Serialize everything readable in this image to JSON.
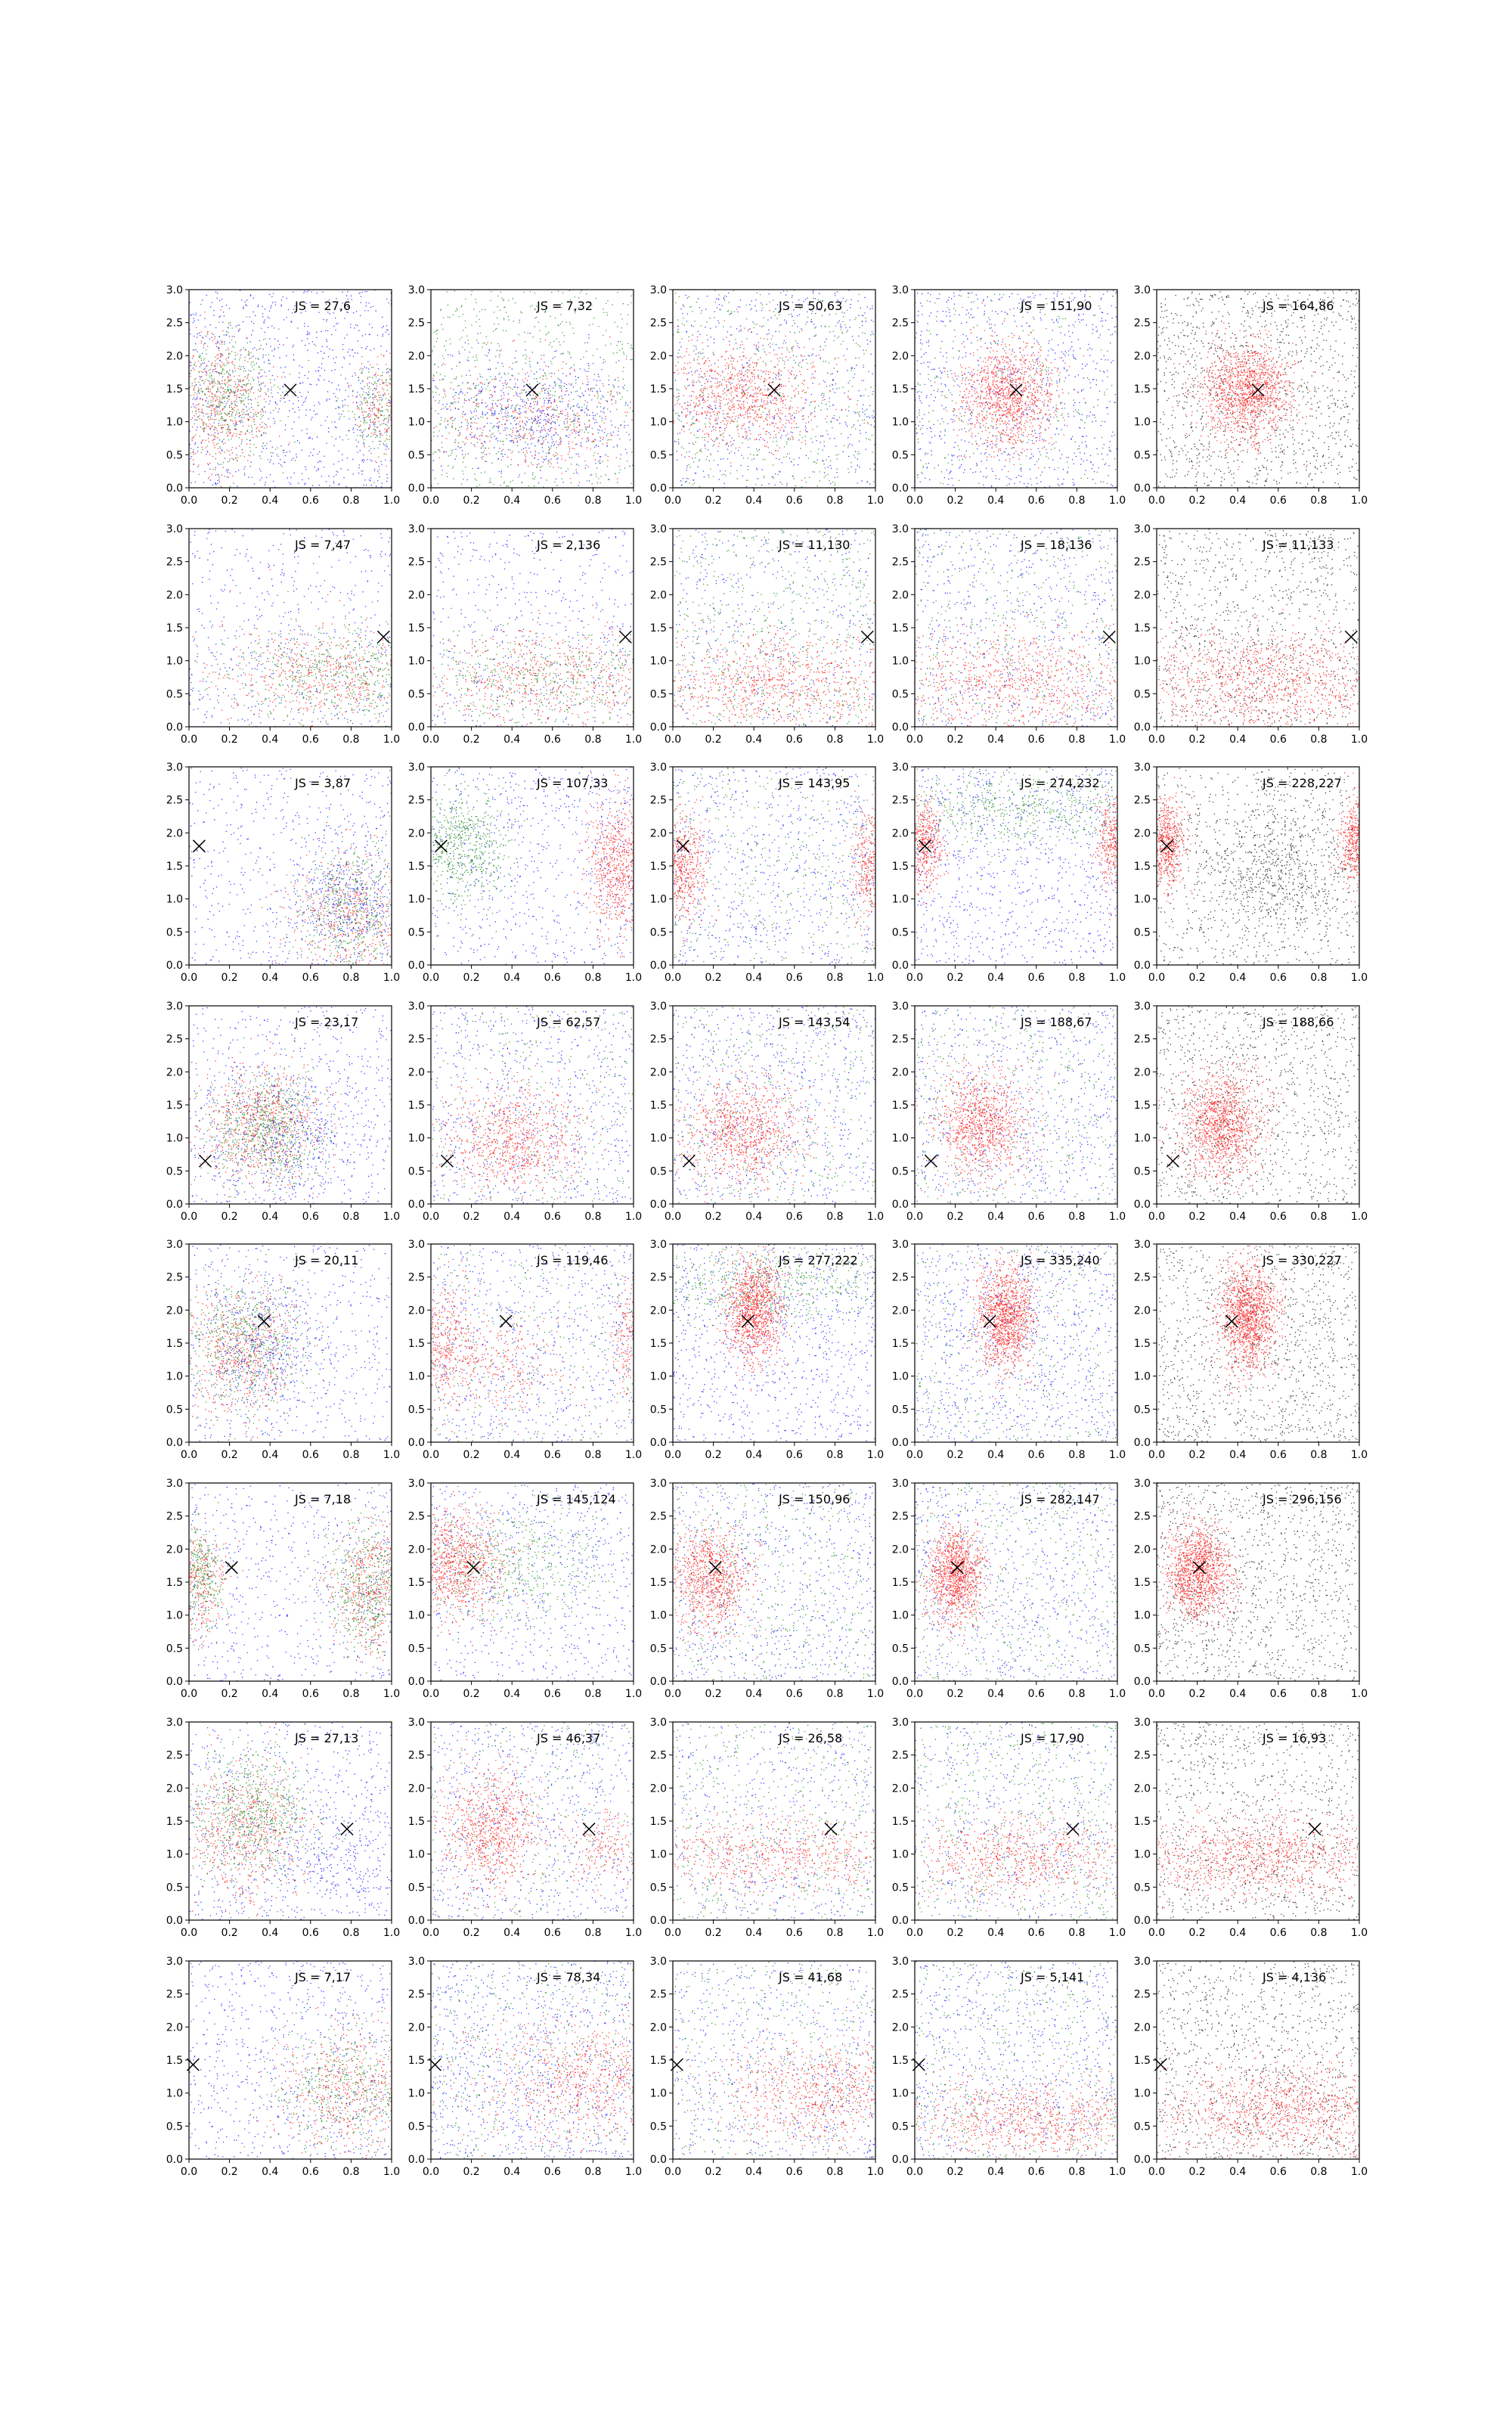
{
  "colors": {
    "red": "#ff0000",
    "green": "#008000",
    "blue": "#0000ff",
    "black": "#000000"
  },
  "axes": {
    "xlim": [
      0,
      1
    ],
    "ylim": [
      0,
      3
    ],
    "xticks": [
      "0.0",
      "0.2",
      "0.4",
      "0.6",
      "0.8",
      "1.0"
    ],
    "yticks": [
      "0.0",
      "0.5",
      "1.0",
      "1.5",
      "2.0",
      "2.5",
      "3.0"
    ],
    "grid": false
  },
  "chart_data": {
    "type": "scatter",
    "layout": "grid of 8 rows x 5 columns of small-multiple scatter plots",
    "marker": "x",
    "rows": [
      {
        "marker_point": {
          "x": 0.5,
          "y": 1.48
        },
        "panels": [
          {
            "annotation": "JS = 27,6",
            "points": "mixed"
          },
          {
            "annotation": "JS = 7,32",
            "points": "mixed"
          },
          {
            "annotation": "JS = 50,63",
            "points": "mixed"
          },
          {
            "annotation": "JS = 151,90",
            "points": "mixed"
          },
          {
            "annotation": "JS = 164,86",
            "points": "red and black"
          }
        ]
      },
      {
        "marker_point": {
          "x": 0.96,
          "y": 1.36
        },
        "panels": [
          {
            "annotation": "JS = 7,47",
            "points": "mixed"
          },
          {
            "annotation": "JS = 2,136",
            "points": "mixed"
          },
          {
            "annotation": "JS = 11,130",
            "points": "mixed"
          },
          {
            "annotation": "JS = 18,136",
            "points": "mixed"
          },
          {
            "annotation": "JS = 11,133",
            "points": "red and black"
          }
        ]
      },
      {
        "marker_point": {
          "x": 0.05,
          "y": 1.8
        },
        "panels": [
          {
            "annotation": "JS = 3,87",
            "points": "mixed"
          },
          {
            "annotation": "JS = 107,33",
            "points": "mixed"
          },
          {
            "annotation": "JS = 143,95",
            "points": "mixed"
          },
          {
            "annotation": "JS = 274,232",
            "points": "mixed"
          },
          {
            "annotation": "JS = 228,227",
            "points": "red and black"
          }
        ]
      },
      {
        "marker_point": {
          "x": 0.08,
          "y": 0.65
        },
        "panels": [
          {
            "annotation": "JS = 23,17",
            "points": "mixed"
          },
          {
            "annotation": "JS = 62,57",
            "points": "mixed"
          },
          {
            "annotation": "JS = 143,54",
            "points": "mixed"
          },
          {
            "annotation": "JS = 188,67",
            "points": "mixed"
          },
          {
            "annotation": "JS = 188,66",
            "points": "red and black"
          }
        ]
      },
      {
        "marker_point": {
          "x": 0.37,
          "y": 1.83
        },
        "panels": [
          {
            "annotation": "JS = 20,11",
            "points": "mixed"
          },
          {
            "annotation": "JS = 119,46",
            "points": "mixed"
          },
          {
            "annotation": "JS = 277,222",
            "points": "mixed"
          },
          {
            "annotation": "JS = 335,240",
            "points": "mixed"
          },
          {
            "annotation": "JS = 330,227",
            "points": "red and black"
          }
        ]
      },
      {
        "marker_point": {
          "x": 0.21,
          "y": 1.72
        },
        "panels": [
          {
            "annotation": "JS = 7,18",
            "points": "mixed"
          },
          {
            "annotation": "JS = 145,124",
            "points": "mixed"
          },
          {
            "annotation": "JS = 150,96",
            "points": "mixed"
          },
          {
            "annotation": "JS = 282,147",
            "points": "mixed"
          },
          {
            "annotation": "JS = 296,156",
            "points": "red and black"
          }
        ]
      },
      {
        "marker_point": {
          "x": 0.78,
          "y": 1.38
        },
        "panels": [
          {
            "annotation": "JS = 27,13",
            "points": "mixed"
          },
          {
            "annotation": "JS = 46,37",
            "points": "mixed"
          },
          {
            "annotation": "JS = 26,58",
            "points": "mixed"
          },
          {
            "annotation": "JS = 17,90",
            "points": "mixed"
          },
          {
            "annotation": "JS = 16,93",
            "points": "red and black"
          }
        ]
      },
      {
        "marker_point": {
          "x": 0.02,
          "y": 1.43
        },
        "panels": [
          {
            "annotation": "JS = 7,17",
            "points": "mixed"
          },
          {
            "annotation": "JS = 78,34",
            "points": "mixed"
          },
          {
            "annotation": "JS = 41,68",
            "points": "mixed"
          },
          {
            "annotation": "JS = 5,141",
            "points": "mixed"
          },
          {
            "annotation": "JS = 4,136",
            "points": "red and black"
          }
        ]
      }
    ]
  }
}
